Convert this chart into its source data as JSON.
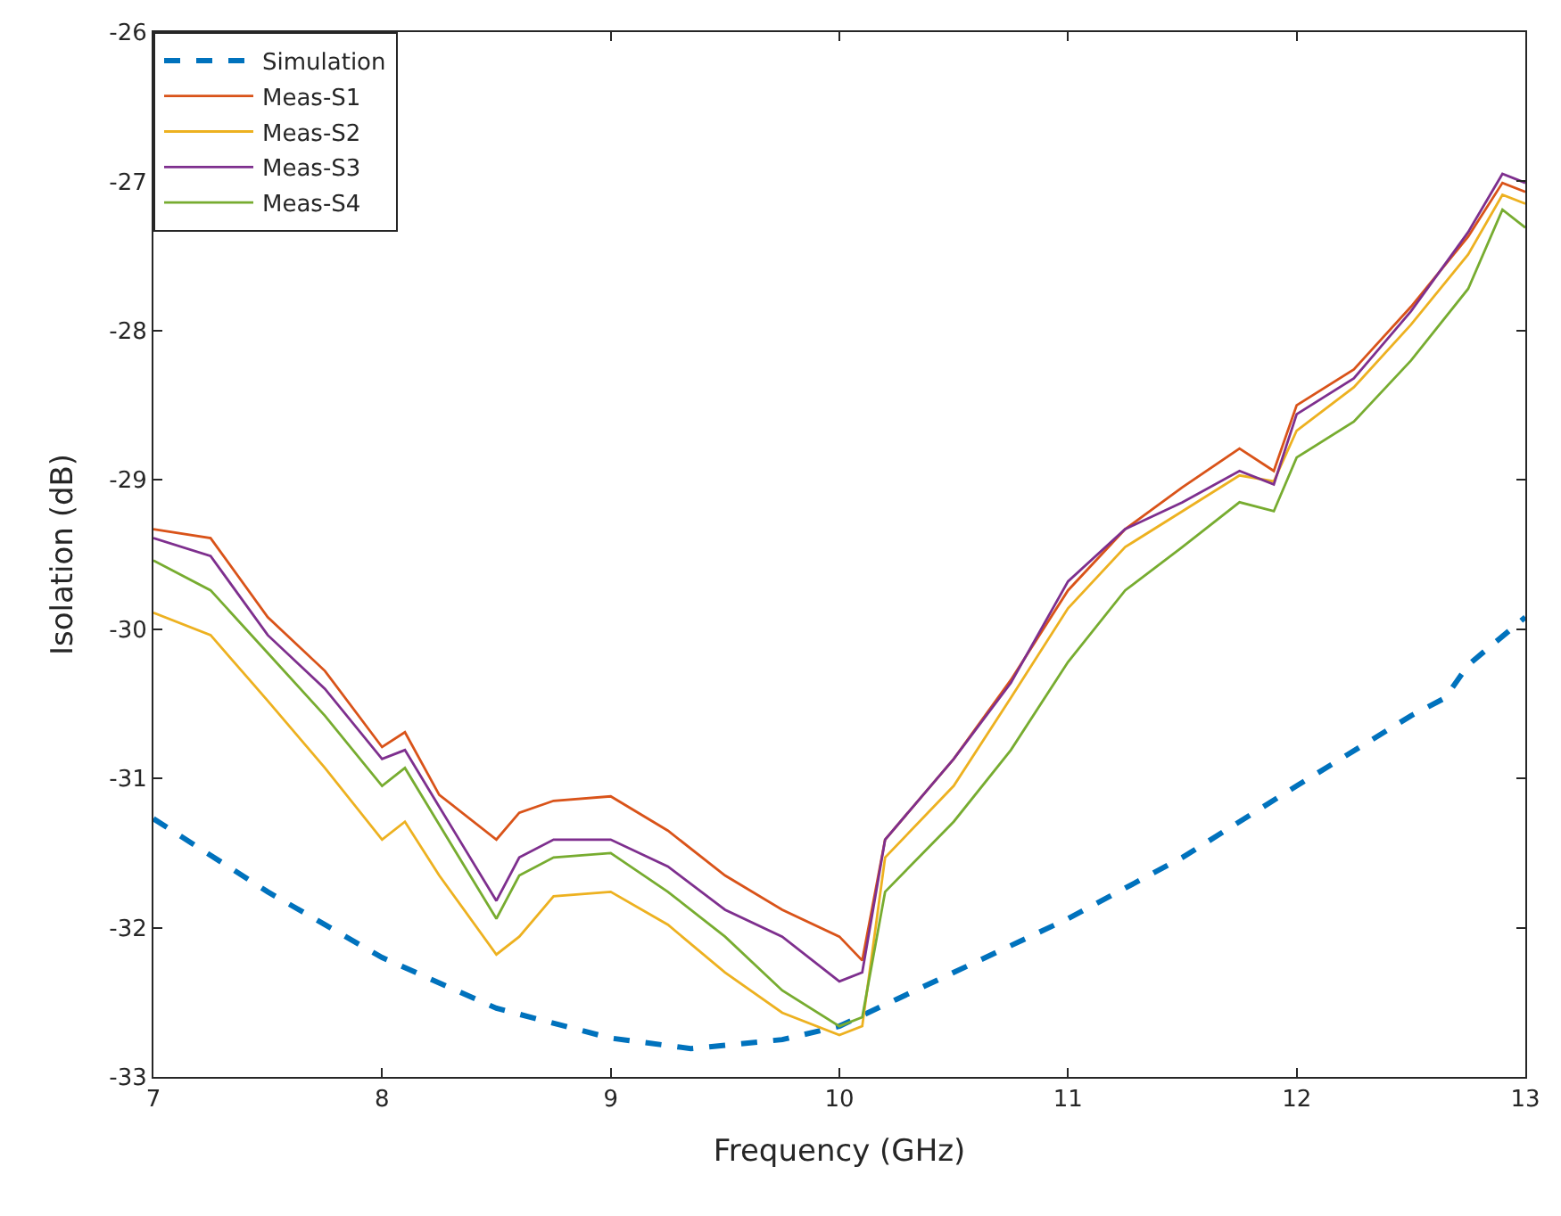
{
  "chart_data": {
    "type": "line",
    "xlabel": "Frequency (GHz)",
    "ylabel": "Isolation (dB)",
    "xlim": [
      7,
      13
    ],
    "xticks": [
      7,
      8,
      9,
      10,
      11,
      12,
      13
    ],
    "ylim": [
      -33,
      -26
    ],
    "yticks": [
      -33,
      -32,
      -31,
      -30,
      -29,
      -28,
      -27,
      -26
    ],
    "legend": "top left",
    "marker": "none",
    "x": [
      7,
      7.25,
      7.5,
      7.75,
      8,
      8.1,
      8.25,
      8.5,
      8.6,
      8.75,
      9,
      9.25,
      9.5,
      9.75,
      10,
      10.1,
      10.2,
      10.5,
      10.75,
      11,
      11.25,
      11.5,
      11.75,
      11.9,
      12,
      12.25,
      12.5,
      12.75,
      12.9,
      13
    ],
    "series": [
      {
        "name": "Simulation",
        "color": "#0072bd",
        "line_style": "dashed",
        "x": [
          7,
          7.5,
          8,
          8.5,
          9,
          9.35,
          9.75,
          10,
          10.25,
          10.5,
          11,
          11.5,
          12,
          12.5,
          12.65,
          12.75,
          13
        ],
        "values": [
          -31.27,
          -31.76,
          -32.2,
          -32.54,
          -32.74,
          -32.81,
          -32.75,
          -32.66,
          -32.48,
          -32.3,
          -31.94,
          -31.53,
          -31.05,
          -30.58,
          -30.46,
          -30.24,
          -29.92
        ]
      },
      {
        "name": "Meas-S1",
        "color": "#d95319",
        "line_style": "solid",
        "values": [
          -29.33,
          -29.39,
          -29.92,
          -30.28,
          -30.79,
          -30.69,
          -31.11,
          -31.41,
          -31.23,
          -31.15,
          -31.12,
          -31.35,
          -31.65,
          -31.88,
          -32.06,
          -32.22,
          -31.41,
          -30.87,
          -30.34,
          -29.74,
          -29.33,
          -29.05,
          -28.79,
          -28.94,
          -28.5,
          -28.26,
          -27.84,
          -27.37,
          -27.01,
          -27.07
        ]
      },
      {
        "name": "Meas-S2",
        "color": "#edb120",
        "line_style": "solid",
        "values": [
          -29.89,
          -30.04,
          -30.48,
          -30.93,
          -31.41,
          -31.29,
          -31.65,
          -32.18,
          -32.06,
          -31.79,
          -31.76,
          -31.98,
          -32.3,
          -32.57,
          -32.72,
          -32.66,
          -31.53,
          -31.05,
          -30.46,
          -29.86,
          -29.45,
          -29.21,
          -28.97,
          -29.01,
          -28.67,
          -28.38,
          -27.96,
          -27.49,
          -27.09,
          -27.15
        ]
      },
      {
        "name": "Meas-S3",
        "color": "#7e2f8e",
        "line_style": "solid",
        "values": [
          -29.39,
          -29.51,
          -30.04,
          -30.4,
          -30.87,
          -30.81,
          -31.19,
          -31.82,
          -31.53,
          -31.41,
          -31.41,
          -31.59,
          -31.88,
          -32.06,
          -32.36,
          -32.3,
          -31.41,
          -30.87,
          -30.36,
          -29.68,
          -29.33,
          -29.15,
          -28.94,
          -29.03,
          -28.56,
          -28.32,
          -27.87,
          -27.34,
          -26.95,
          -27.01
        ]
      },
      {
        "name": "Meas-S4",
        "color": "#77ac30",
        "line_style": "solid",
        "values": [
          -29.54,
          -29.74,
          -30.16,
          -30.58,
          -31.05,
          -30.93,
          -31.31,
          -31.94,
          -31.65,
          -31.53,
          -31.5,
          -31.76,
          -32.06,
          -32.42,
          -32.66,
          -32.6,
          -31.76,
          -31.29,
          -30.81,
          -30.22,
          -29.74,
          -29.45,
          -29.15,
          -29.21,
          -28.85,
          -28.61,
          -28.2,
          -27.72,
          -27.19,
          -27.31
        ]
      }
    ]
  }
}
